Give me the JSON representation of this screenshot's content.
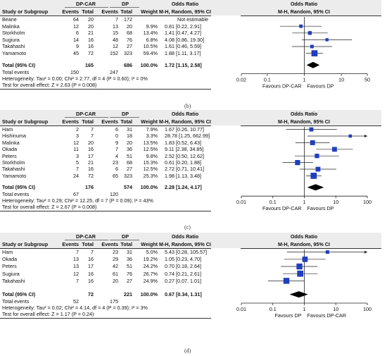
{
  "chart_data": [
    {
      "type": "forest",
      "panel_label": "(b)",
      "headers": {
        "study": "Study or Subgroup",
        "group1": "DP-CAR",
        "group2": "DP",
        "events": "Events",
        "total": "Total",
        "weight": "Weight",
        "or_title": "Odds Ratio",
        "or_subtitle": "M-H, Random, 95% CI"
      },
      "studies": [
        {
          "name": "Beane",
          "e1": "64",
          "t1": "20",
          "e2": "7",
          "t2": "172",
          "weight": "",
          "ci_text": "Not estimable",
          "or": null,
          "lo": null,
          "hi": null
        },
        {
          "name": "Malinka",
          "e1": "12",
          "t1": "20",
          "e2": "13",
          "t2": "20",
          "weight": "9.9%",
          "ci_text": "0.81 [0.22, 2.91]",
          "or": 0.81,
          "lo": 0.22,
          "hi": 2.91
        },
        {
          "name": "Storkholm",
          "e1": "6",
          "t1": "21",
          "e2": "15",
          "t2": "68",
          "weight": "13.4%",
          "ci_text": "1.41 [0.47, 4.27]",
          "or": 1.41,
          "lo": 0.47,
          "hi": 4.27
        },
        {
          "name": "Sugiura",
          "e1": "14",
          "t1": "16",
          "e2": "48",
          "t2": "76",
          "weight": "6.8%",
          "ci_text": "4.08 [0.86, 19.30]",
          "or": 4.08,
          "lo": 0.86,
          "hi": 19.3
        },
        {
          "name": "Takahashi",
          "e1": "9",
          "t1": "16",
          "e2": "12",
          "t2": "27",
          "weight": "10.5%",
          "ci_text": "1.61 [0.46, 5.59]",
          "or": 1.61,
          "lo": 0.46,
          "hi": 5.59
        },
        {
          "name": "Yamamoto",
          "e1": "45",
          "t1": "72",
          "e2": "152",
          "t2": "323",
          "weight": "59.4%",
          "ci_text": "1.88 [1.11, 3.17]",
          "or": 1.88,
          "lo": 1.11,
          "hi": 3.17
        }
      ],
      "total_label": "Total (95% CI)",
      "total_n1": "165",
      "total_n2": "686",
      "total_weight": "100.0%",
      "total_ci_text": "1.72 [1.15, 2.58]",
      "pooled": {
        "or": 1.72,
        "lo": 1.15,
        "hi": 2.58
      },
      "total_events_label": "Total events",
      "total_e1": "150",
      "total_e2": "247",
      "heterogeneity": "Heterogeneity: Tau² = 0.00; Chi² = 2.77, df = 4 (P = 0.60); I² = 0%",
      "overall_test": "Test for overall effect: Z = 2.63 (P = 0.008)",
      "x_scale": "log",
      "x_range": [
        0.02,
        50
      ],
      "ticks": [
        {
          "v": 0.02,
          "label": "0.02"
        },
        {
          "v": 0.1,
          "label": "0.1"
        },
        {
          "v": 1,
          "label": "1"
        },
        {
          "v": 10,
          "label": "10"
        },
        {
          "v": 50,
          "label": "50"
        }
      ],
      "favours_left": "Favours DP-CAR",
      "favours_right": "Favours DP"
    },
    {
      "type": "forest",
      "panel_label": "(c)",
      "headers": {
        "study": "Study or Subgroup",
        "group1": "DP-CAR",
        "group2": "DP",
        "events": "Events",
        "total": "Total",
        "weight": "Weight",
        "or_title": "Odds Ratio",
        "or_subtitle": "M-H, Random, 95% CI"
      },
      "studies": [
        {
          "name": "Ham",
          "e1": "2",
          "t1": "7",
          "e2": "6",
          "t2": "31",
          "weight": "7.9%",
          "ci_text": "1.67 [0.26, 10.77]",
          "or": 1.67,
          "lo": 0.26,
          "hi": 10.77
        },
        {
          "name": "Hishinuma",
          "e1": "3",
          "t1": "7",
          "e2": "0",
          "t2": "18",
          "weight": "3.3%",
          "ci_text": "28.78 [1.25, 662.99]",
          "or": 28.78,
          "lo": 1.25,
          "hi": 662.99
        },
        {
          "name": "Malinka",
          "e1": "12",
          "t1": "20",
          "e2": "9",
          "t2": "20",
          "weight": "13.5%",
          "ci_text": "1.83 [0.52, 6.43]",
          "or": 1.83,
          "lo": 0.52,
          "hi": 6.43
        },
        {
          "name": "Okada",
          "e1": "11",
          "t1": "16",
          "e2": "7",
          "t2": "36",
          "weight": "12.5%",
          "ci_text": "9.11 [2.38, 34.85]",
          "or": 9.11,
          "lo": 2.38,
          "hi": 34.85
        },
        {
          "name": "Peters",
          "e1": "3",
          "t1": "17",
          "e2": "4",
          "t2": "51",
          "weight": "9.8%",
          "ci_text": "2.52 [0.50, 12.62]",
          "or": 2.52,
          "lo": 0.5,
          "hi": 12.62
        },
        {
          "name": "Storkholm",
          "e1": "5",
          "t1": "21",
          "e2": "23",
          "t2": "68",
          "weight": "15.3%",
          "ci_text": "0.61 [0.20, 1.88]",
          "or": 0.61,
          "lo": 0.2,
          "hi": 1.88
        },
        {
          "name": "Takahashi",
          "e1": "7",
          "t1": "16",
          "e2": "6",
          "t2": "27",
          "weight": "12.5%",
          "ci_text": "2.72 [0.71, 10.41]",
          "or": 2.72,
          "lo": 0.71,
          "hi": 10.41
        },
        {
          "name": "Yamamoto",
          "e1": "24",
          "t1": "72",
          "e2": "65",
          "t2": "323",
          "weight": "25.3%",
          "ci_text": "1.98 [1.13, 3.48]",
          "or": 1.98,
          "lo": 1.13,
          "hi": 3.48
        }
      ],
      "total_label": "Total (95% CI)",
      "total_n1": "176",
      "total_n2": "574",
      "total_weight": "100.0%",
      "total_ci_text": "2.28 [1.24, 4.17]",
      "pooled": {
        "or": 2.28,
        "lo": 1.24,
        "hi": 4.17
      },
      "total_events_label": "Total events",
      "total_e1": "67",
      "total_e2": "120",
      "heterogeneity": "Heterogeneity: Tau² = 0.29; Chi² = 12.25, df = 7 (P = 0.09); I² = 43%",
      "overall_test": "Test for overall effect: Z = 2.67 (P = 0.008)",
      "x_scale": "log",
      "x_range": [
        0.01,
        100
      ],
      "ticks": [
        {
          "v": 0.01,
          "label": "0.01"
        },
        {
          "v": 0.1,
          "label": "0.1"
        },
        {
          "v": 1,
          "label": "1"
        },
        {
          "v": 10,
          "label": "10"
        },
        {
          "v": 100,
          "label": "100"
        }
      ],
      "favours_left": "Favours DP-CAR",
      "favours_right": "Favours DP"
    },
    {
      "type": "forest",
      "panel_label": "(d)",
      "headers": {
        "study": "Study or Subgroup",
        "group1": "DP-CAR",
        "group2": "DP",
        "events": "Events",
        "total": "Total",
        "weight": "Weight",
        "or_title": "Odds Ratio",
        "or_subtitle": "M-H, Random, 95% CI"
      },
      "studies": [
        {
          "name": "Ham",
          "e1": "7",
          "t1": "7",
          "e2": "23",
          "t2": "31",
          "weight": "5.0%",
          "ci_text": "5.43 [0.28, 105.57]",
          "or": 5.43,
          "lo": 0.28,
          "hi": 105.57
        },
        {
          "name": "Okada",
          "e1": "13",
          "t1": "16",
          "e2": "29",
          "t2": "36",
          "weight": "19.2%",
          "ci_text": "1.05 [0.23, 4.70]",
          "or": 1.05,
          "lo": 0.23,
          "hi": 4.7
        },
        {
          "name": "Peters",
          "e1": "13",
          "t1": "17",
          "e2": "42",
          "t2": "51",
          "weight": "24.2%",
          "ci_text": "0.70 [0.18, 2.64]",
          "or": 0.7,
          "lo": 0.18,
          "hi": 2.64
        },
        {
          "name": "Sugiura",
          "e1": "12",
          "t1": "16",
          "e2": "61",
          "t2": "76",
          "weight": "26.7%",
          "ci_text": "0.74 [0.21, 2.61]",
          "or": 0.74,
          "lo": 0.21,
          "hi": 2.61
        },
        {
          "name": "Takahashi",
          "e1": "7",
          "t1": "16",
          "e2": "20",
          "t2": "27",
          "weight": "24.9%",
          "ci_text": "0.27 [0.07, 1.01]",
          "or": 0.27,
          "lo": 0.07,
          "hi": 1.01
        }
      ],
      "total_label": "Total (95% CI)",
      "total_n1": "72",
      "total_n2": "221",
      "total_weight": "100.0%",
      "total_ci_text": "0.67 [0.34, 1.31]",
      "pooled": {
        "or": 0.67,
        "lo": 0.34,
        "hi": 1.31
      },
      "total_events_label": "Total events",
      "total_e1": "52",
      "total_e2": "175",
      "heterogeneity": "Heterogeneity: Tau² = 0.02; Chi² = 4.14, df = 4 (P = 0.39); I² = 3%",
      "overall_test": "Test for overall effect: Z = 1.17 (P = 0.24)",
      "x_scale": "log",
      "x_range": [
        0.01,
        100
      ],
      "ticks": [
        {
          "v": 0.01,
          "label": "0.01"
        },
        {
          "v": 0.1,
          "label": "0.1"
        },
        {
          "v": 1,
          "label": "1"
        },
        {
          "v": 10,
          "label": "10"
        },
        {
          "v": 100,
          "label": "100"
        }
      ],
      "favours_left": "Favours DP",
      "favours_right": "Favours DP-CAR"
    }
  ],
  "colors": {
    "marker": "#1f3fbf",
    "diamond": "#000000",
    "header_band": "#ececec",
    "line": "#333333"
  }
}
